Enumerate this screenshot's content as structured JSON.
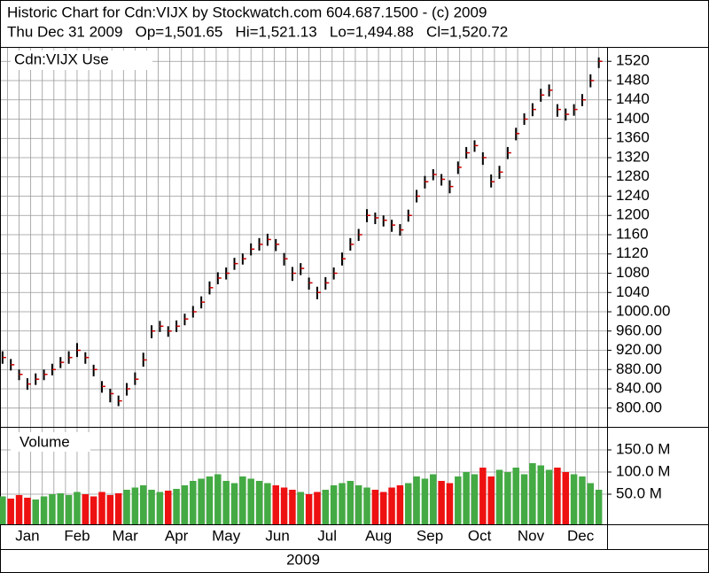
{
  "chart_data": [
    {
      "type": "ohlc",
      "title": "Historic Chart for Cdn:VIJX by Stockwatch.com 604.687.1500 - (c) 2009",
      "subtitle": "Thu Dec 31 2009   Op=1,501.65   Hi=1,521.13   Lo=1,494.88   Cl=1,520.72",
      "x": [
        1,
        6,
        11,
        16,
        21,
        26,
        31,
        36,
        41,
        46,
        51,
        56,
        61,
        66,
        71,
        76,
        81,
        86,
        91,
        96,
        101,
        106,
        111,
        116,
        121,
        126,
        131,
        136,
        141,
        146,
        151,
        156,
        161,
        166,
        171,
        176,
        181,
        186,
        191,
        196,
        201,
        206,
        211,
        216,
        221,
        226,
        231,
        236,
        241,
        246,
        251,
        256,
        261,
        266,
        271,
        276,
        281,
        286,
        291,
        296,
        301,
        306,
        311,
        316,
        321,
        326,
        331,
        336,
        341,
        346,
        351,
        356,
        361
      ],
      "series": [
        {
          "name": "Cdn:VIJX Use",
          "color": "#000000",
          "tick_color": "#cc0000",
          "high": [
            918,
            902,
            880,
            862,
            872,
            880,
            892,
            906,
            918,
            935,
            916,
            890,
            856,
            840,
            826,
            852,
            874,
            915,
            972,
            981,
            970,
            982,
            996,
            1012,
            1032,
            1063,
            1082,
            1092,
            1112,
            1121,
            1142,
            1153,
            1162,
            1151,
            1122,
            1093,
            1101,
            1071,
            1052,
            1072,
            1092,
            1123,
            1153,
            1172,
            1213,
            1206,
            1200,
            1191,
            1182,
            1212,
            1253,
            1282,
            1296,
            1286,
            1273,
            1312,
            1342,
            1356,
            1331,
            1285,
            1303,
            1342,
            1382,
            1412,
            1433,
            1463,
            1472,
            1431,
            1422,
            1431,
            1452,
            1493,
            1528
          ],
          "low": [
            892,
            878,
            858,
            838,
            848,
            858,
            868,
            883,
            892,
            906,
            892,
            866,
            832,
            812,
            804,
            826,
            848,
            886,
            945,
            958,
            948,
            958,
            972,
            988,
            1007,
            1036,
            1057,
            1067,
            1087,
            1098,
            1117,
            1127,
            1137,
            1126,
            1096,
            1064,
            1076,
            1046,
            1026,
            1046,
            1067,
            1096,
            1127,
            1147,
            1186,
            1182,
            1177,
            1166,
            1158,
            1187,
            1227,
            1256,
            1273,
            1262,
            1246,
            1286,
            1318,
            1332,
            1305,
            1258,
            1276,
            1317,
            1356,
            1388,
            1406,
            1436,
            1447,
            1405,
            1397,
            1407,
            1427,
            1466,
            1506
          ],
          "close": [
            905,
            890,
            870,
            850,
            860,
            870,
            880,
            895,
            905,
            920,
            905,
            880,
            845,
            830,
            815,
            840,
            860,
            900,
            960,
            970,
            960,
            970,
            985,
            1000,
            1020,
            1050,
            1070,
            1080,
            1100,
            1110,
            1130,
            1140,
            1150,
            1140,
            1110,
            1080,
            1090,
            1060,
            1040,
            1060,
            1080,
            1110,
            1140,
            1160,
            1200,
            1195,
            1190,
            1180,
            1170,
            1200,
            1240,
            1270,
            1285,
            1275,
            1260,
            1300,
            1330,
            1345,
            1320,
            1270,
            1290,
            1330,
            1370,
            1400,
            1420,
            1450,
            1460,
            1420,
            1410,
            1420,
            1440,
            1480,
            1520
          ]
        }
      ],
      "xlim": [
        0,
        366
      ],
      "xminorticks": [
        4,
        11,
        18,
        25,
        32,
        39,
        46,
        53,
        60,
        67,
        74,
        81,
        88,
        95,
        102,
        109,
        116,
        123,
        130,
        137,
        144,
        151,
        158,
        165,
        172,
        179,
        186,
        193,
        200,
        207,
        214,
        221,
        228,
        235,
        242,
        249,
        256,
        263,
        270,
        277,
        284,
        291,
        298,
        305,
        312,
        319,
        326,
        333,
        340,
        347,
        354,
        361
      ],
      "ylim": [
        761,
        1548
      ],
      "yticks": [
        {
          "value": 800,
          "label": "800.00"
        },
        {
          "value": 840,
          "label": "840.00"
        },
        {
          "value": 880,
          "label": "880.00"
        },
        {
          "value": 920,
          "label": "920.00"
        },
        {
          "value": 960,
          "label": "960.00"
        },
        {
          "value": 1000,
          "label": "1000.00"
        },
        1040,
        1080,
        1120,
        1160,
        1200,
        1240,
        1280,
        1320,
        1360,
        1400,
        1440,
        1480,
        1520
      ],
      "grid": true
    },
    {
      "type": "bar",
      "x": [
        1,
        6,
        11,
        16,
        21,
        26,
        31,
        36,
        41,
        46,
        51,
        56,
        61,
        66,
        71,
        76,
        81,
        86,
        91,
        96,
        101,
        106,
        111,
        116,
        121,
        126,
        131,
        136,
        141,
        146,
        151,
        156,
        161,
        166,
        171,
        176,
        181,
        186,
        191,
        196,
        201,
        206,
        211,
        216,
        221,
        226,
        231,
        236,
        241,
        246,
        251,
        256,
        261,
        266,
        271,
        276,
        281,
        286,
        291,
        296,
        301,
        306,
        311,
        316,
        321,
        326,
        331,
        336,
        341,
        346,
        351,
        356,
        361
      ],
      "series": [
        {
          "name": "Volume",
          "up_color": "#44aa44",
          "down_color": "#ee1111",
          "values": [
            45,
            40,
            48,
            42,
            38,
            45,
            50,
            52,
            48,
            55,
            50,
            45,
            55,
            48,
            52,
            60,
            65,
            70,
            60,
            55,
            58,
            62,
            70,
            80,
            85,
            90,
            95,
            80,
            75,
            90,
            85,
            80,
            75,
            70,
            65,
            60,
            55,
            50,
            55,
            60,
            70,
            75,
            80,
            70,
            65,
            60,
            55,
            65,
            70,
            75,
            90,
            85,
            95,
            80,
            75,
            90,
            100,
            95,
            110,
            90,
            105,
            100,
            110,
            95,
            120,
            115,
            105,
            110,
            100,
            95,
            90,
            75,
            60
          ]
        }
      ],
      "xlim": [
        0,
        366
      ],
      "xticks": [
        {
          "value": 16,
          "label": "Jan"
        },
        {
          "value": 46,
          "label": "Feb"
        },
        {
          "value": 75,
          "label": "Mar"
        },
        {
          "value": 106,
          "label": "Apr"
        },
        {
          "value": 136,
          "label": "May"
        },
        {
          "value": 167,
          "label": "Jun"
        },
        {
          "value": 197,
          "label": "Jul"
        },
        {
          "value": 228,
          "label": "Aug"
        },
        {
          "value": 259,
          "label": "Sep"
        },
        {
          "value": 289,
          "label": "Oct"
        },
        {
          "value": 320,
          "label": "Nov"
        },
        {
          "value": 350,
          "label": "Dec"
        }
      ],
      "xlabel": "2009",
      "ylim": [
        0,
        200
      ],
      "yticks": [
        {
          "value": 50,
          "label": "50.0 M"
        },
        {
          "value": 100,
          "label": "100.0 M"
        },
        {
          "value": 150,
          "label": "150.0 M"
        }
      ],
      "grid": true
    }
  ]
}
